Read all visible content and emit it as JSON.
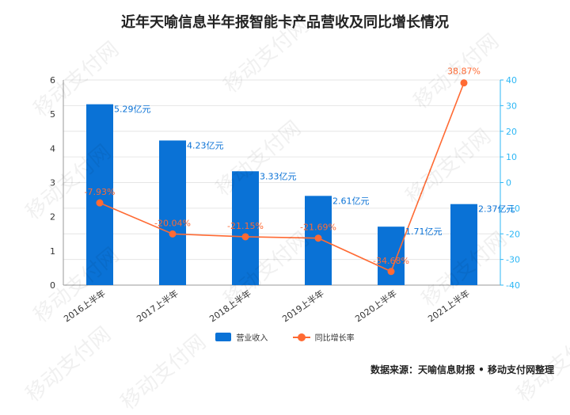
{
  "title": "近年天喻信息半年报智能卡产品营收及同比增长情况",
  "source": "数据来源：天喻信息财报 • 移动支付网整理",
  "watermark": "移动支付网",
  "colors": {
    "bar": "#0a72d6",
    "line": "#ff6a33",
    "right_axis": "#2db7f5",
    "axis_text": "#333333",
    "grid": "#e6e6e6"
  },
  "chart_data": {
    "type": "bar",
    "categories": [
      "2016上半年",
      "2017上半年",
      "2018上半年",
      "2019上半年",
      "2020上半年",
      "2021上半年"
    ],
    "series": [
      {
        "name": "营业收入",
        "type": "bar",
        "axis": "left",
        "values": [
          5.29,
          4.23,
          3.33,
          2.61,
          1.71,
          2.37
        ],
        "labels": [
          "5.29亿元",
          "4.23亿元",
          "3.33亿元",
          "2.61亿元",
          "1.71亿元",
          "2.37亿元"
        ]
      },
      {
        "name": "同比增长率",
        "type": "line",
        "axis": "right",
        "values": [
          -7.93,
          -20.04,
          -21.15,
          -21.69,
          -34.68,
          38.87
        ],
        "labels": [
          "-7.93%",
          "-20.04%",
          "-21.15%",
          "-21.69%",
          "-34.68%",
          "38.87%"
        ]
      }
    ],
    "left_axis": {
      "min": 0,
      "max": 6,
      "ticks": [
        0,
        1,
        2,
        3,
        4,
        5,
        6
      ]
    },
    "right_axis": {
      "min": -40,
      "max": 40,
      "ticks": [
        -40,
        -30,
        -20,
        -10,
        0,
        10,
        20,
        30,
        40
      ]
    },
    "grid": true,
    "legend": "bottom"
  }
}
